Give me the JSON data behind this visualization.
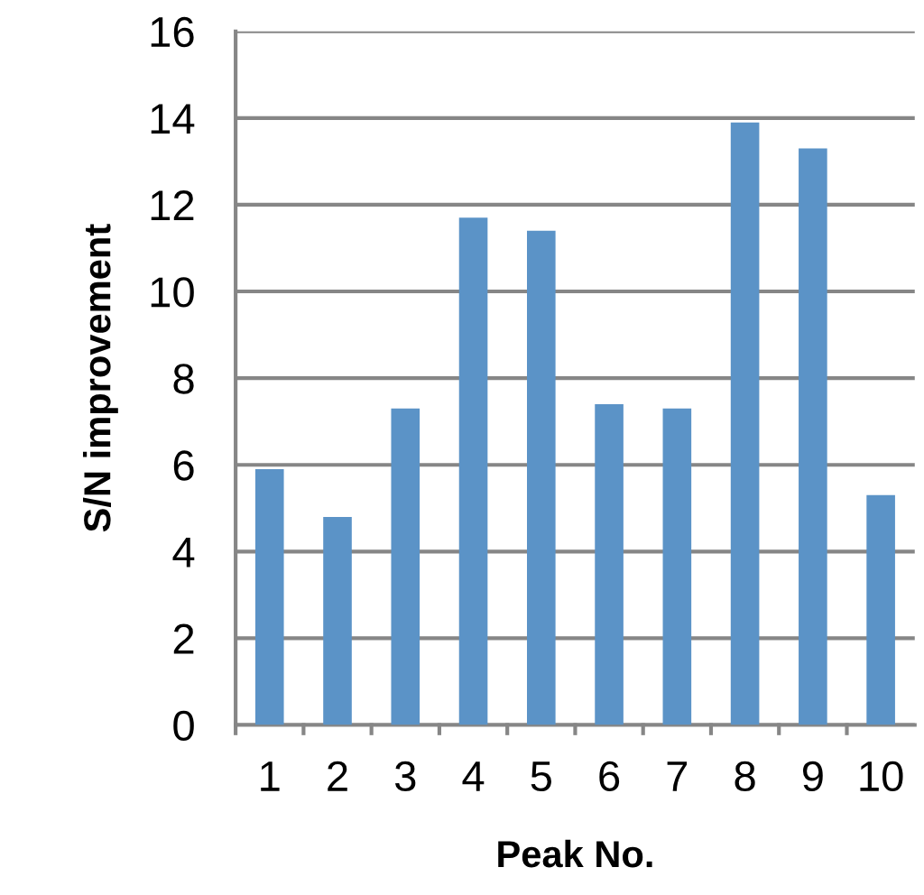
{
  "chart_data": {
    "type": "bar",
    "xlabel": "Peak No.",
    "ylabel": "S/N improvement",
    "categories": [
      "1",
      "2",
      "3",
      "4",
      "5",
      "6",
      "7",
      "8",
      "9",
      "10"
    ],
    "values": [
      5.9,
      4.8,
      7.3,
      11.7,
      11.4,
      7.4,
      7.3,
      13.9,
      13.3,
      5.3
    ],
    "color": "#5b93c7",
    "ylim": [
      0,
      16
    ],
    "yticks": [
      0,
      2,
      4,
      6,
      8,
      10,
      12,
      14,
      16
    ],
    "grid": "y",
    "legend": false
  }
}
